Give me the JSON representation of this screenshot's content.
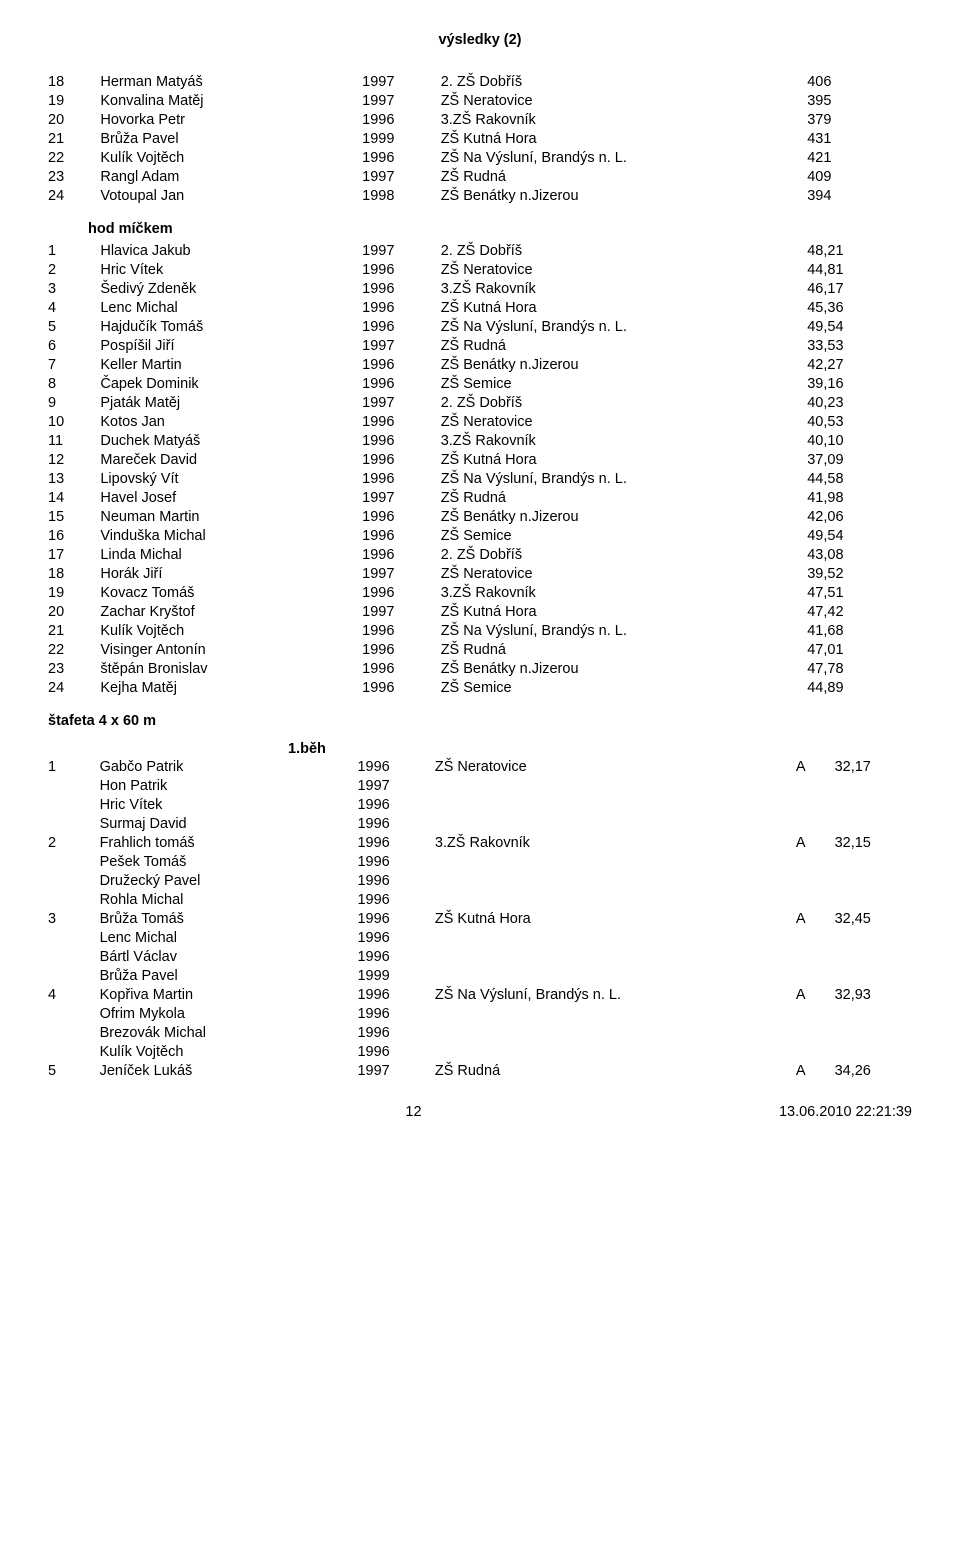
{
  "header": "výsledky (2)",
  "block1": [
    {
      "rank": "18",
      "name": "Herman Matyáš",
      "year": "1997",
      "school": "2. ZŠ Dobříš",
      "result": "406"
    },
    {
      "rank": "19",
      "name": "Konvalina Matěj",
      "year": "1997",
      "school": "ZŠ Neratovice",
      "result": "395"
    },
    {
      "rank": "20",
      "name": "Hovorka Petr",
      "year": "1996",
      "school": "3.ZŠ Rakovník",
      "result": "379"
    },
    {
      "rank": "21",
      "name": "Brůža Pavel",
      "year": "1999",
      "school": "ZŠ  Kutná Hora",
      "result": "431"
    },
    {
      "rank": "22",
      "name": "Kulík Vojtěch",
      "year": "1996",
      "school": "ZŠ Na Výsluní,  Brandýs n. L.",
      "result": "421"
    },
    {
      "rank": "23",
      "name": "Rangl Adam",
      "year": "1997",
      "school": "ZŠ Rudná",
      "result": "409"
    },
    {
      "rank": "24",
      "name": "Votoupal Jan",
      "year": "1998",
      "school": "ZŠ Benátky n.Jizerou",
      "result": "394"
    }
  ],
  "section2_title": "hod míčkem",
  "block2": [
    {
      "rank": "1",
      "name": "Hlavica Jakub",
      "year": "1997",
      "school": "2. ZŠ Dobříš",
      "result": "48,21"
    },
    {
      "rank": "2",
      "name": "Hric Vítek",
      "year": "1996",
      "school": "ZŠ Neratovice",
      "result": "44,81"
    },
    {
      "rank": "3",
      "name": "Šedivý Zdeněk",
      "year": "1996",
      "school": "3.ZŠ Rakovník",
      "result": "46,17"
    },
    {
      "rank": "4",
      "name": "Lenc Michal",
      "year": "1996",
      "school": "ZŠ  Kutná Hora",
      "result": "45,36"
    },
    {
      "rank": "5",
      "name": "Hajdučík Tomáš",
      "year": "1996",
      "school": "ZŠ Na Výsluní,  Brandýs n. L.",
      "result": "49,54"
    },
    {
      "rank": "6",
      "name": "Pospíšil Jiří",
      "year": "1997",
      "school": "ZŠ Rudná",
      "result": "33,53"
    },
    {
      "rank": "7",
      "name": "Keller Martin",
      "year": "1996",
      "school": "ZŠ Benátky n.Jizerou",
      "result": "42,27"
    },
    {
      "rank": "8",
      "name": "Čapek Dominik",
      "year": "1996",
      "school": "ZŠ Semice",
      "result": "39,16"
    },
    {
      "rank": "9",
      "name": "Pjaták Matěj",
      "year": "1997",
      "school": "2. ZŠ Dobříš",
      "result": "40,23"
    },
    {
      "rank": "10",
      "name": "Kotos Jan",
      "year": "1996",
      "school": "ZŠ Neratovice",
      "result": "40,53"
    },
    {
      "rank": "11",
      "name": "Duchek Matyáš",
      "year": "1996",
      "school": "3.ZŠ Rakovník",
      "result": "40,10"
    },
    {
      "rank": "12",
      "name": "Mareček David",
      "year": "1996",
      "school": "ZŠ  Kutná Hora",
      "result": "37,09"
    },
    {
      "rank": "13",
      "name": "Lipovský Vít",
      "year": "1996",
      "school": "ZŠ Na Výsluní,  Brandýs n. L.",
      "result": "44,58"
    },
    {
      "rank": "14",
      "name": "Havel Josef",
      "year": "1997",
      "school": "ZŠ Rudná",
      "result": "41,98"
    },
    {
      "rank": "15",
      "name": "Neuman Martin",
      "year": "1996",
      "school": "ZŠ Benátky n.Jizerou",
      "result": "42,06"
    },
    {
      "rank": "16",
      "name": "Vinduška Michal",
      "year": "1996",
      "school": "ZŠ Semice",
      "result": "49,54"
    },
    {
      "rank": "17",
      "name": "Linda Michal",
      "year": "1996",
      "school": "2. ZŠ Dobříš",
      "result": "43,08"
    },
    {
      "rank": "18",
      "name": "Horák Jiří",
      "year": "1997",
      "school": "ZŠ Neratovice",
      "result": "39,52"
    },
    {
      "rank": "19",
      "name": "Kovacz Tomáš",
      "year": "1996",
      "school": "3.ZŠ Rakovník",
      "result": "47,51"
    },
    {
      "rank": "20",
      "name": "Zachar Kryštof",
      "year": "1997",
      "school": "ZŠ  Kutná Hora",
      "result": "47,42"
    },
    {
      "rank": "21",
      "name": "Kulík Vojtěch",
      "year": "1996",
      "school": "ZŠ Na Výsluní,  Brandýs n. L.",
      "result": "41,68"
    },
    {
      "rank": "22",
      "name": "Visinger Antonín",
      "year": "1996",
      "school": "ZŠ Rudná",
      "result": "47,01"
    },
    {
      "rank": "23",
      "name": "štěpán Bronislav",
      "year": "1996",
      "school": "ZŠ Benátky n.Jizerou",
      "result": "47,78"
    },
    {
      "rank": "24",
      "name": "Kejha Matěj",
      "year": "1996",
      "school": "ZŠ Semice",
      "result": "44,89"
    }
  ],
  "section3_title": "štafeta 4 x 60 m",
  "sub3_title": "1.běh",
  "block3": [
    {
      "rank": "1",
      "name": "Gabčo Patrik",
      "year": "1996",
      "school": "ZŠ Neratovice",
      "letter": "A",
      "time": "32,17"
    },
    {
      "rank": "",
      "name": "Hon Patrik",
      "year": "1997",
      "school": "",
      "letter": "",
      "time": ""
    },
    {
      "rank": "",
      "name": "Hric Vítek",
      "year": "1996",
      "school": "",
      "letter": "",
      "time": ""
    },
    {
      "rank": "",
      "name": "Surmaj David",
      "year": "1996",
      "school": "",
      "letter": "",
      "time": ""
    },
    {
      "rank": "2",
      "name": "Frahlich tomáš",
      "year": "1996",
      "school": "3.ZŠ Rakovník",
      "letter": "A",
      "time": "32,15"
    },
    {
      "rank": "",
      "name": "Pešek Tomáš",
      "year": "1996",
      "school": "",
      "letter": "",
      "time": ""
    },
    {
      "rank": "",
      "name": "Družecký Pavel",
      "year": "1996",
      "school": "",
      "letter": "",
      "time": ""
    },
    {
      "rank": "",
      "name": "Rohla Michal",
      "year": "1996",
      "school": "",
      "letter": "",
      "time": ""
    },
    {
      "rank": "3",
      "name": "Brůža Tomáš",
      "year": "1996",
      "school": "ZŠ  Kutná Hora",
      "letter": "A",
      "time": "32,45"
    },
    {
      "rank": "",
      "name": "Lenc Michal",
      "year": "1996",
      "school": "",
      "letter": "",
      "time": ""
    },
    {
      "rank": "",
      "name": "Bártl Václav",
      "year": "1996",
      "school": "",
      "letter": "",
      "time": ""
    },
    {
      "rank": "",
      "name": "Brůža Pavel",
      "year": "1999",
      "school": "",
      "letter": "",
      "time": ""
    },
    {
      "rank": "4",
      "name": "Kopřiva Martin",
      "year": "1996",
      "school": "ZŠ Na Výsluní,  Brandýs n. L.",
      "letter": "A",
      "time": "32,93"
    },
    {
      "rank": "",
      "name": "Ofrim Mykola",
      "year": "1996",
      "school": "",
      "letter": "",
      "time": ""
    },
    {
      "rank": "",
      "name": "Brezovák Michal",
      "year": "1996",
      "school": "",
      "letter": "",
      "time": ""
    },
    {
      "rank": "",
      "name": "Kulík Vojtěch",
      "year": "1996",
      "school": "",
      "letter": "",
      "time": ""
    },
    {
      "rank": "5",
      "name": "Jeníček Lukáš",
      "year": "1997",
      "school": "ZŠ Rudná",
      "letter": "A",
      "time": "34,26"
    }
  ],
  "footer": {
    "page": "12",
    "timestamp": "13.06.2010 22:21:39"
  }
}
